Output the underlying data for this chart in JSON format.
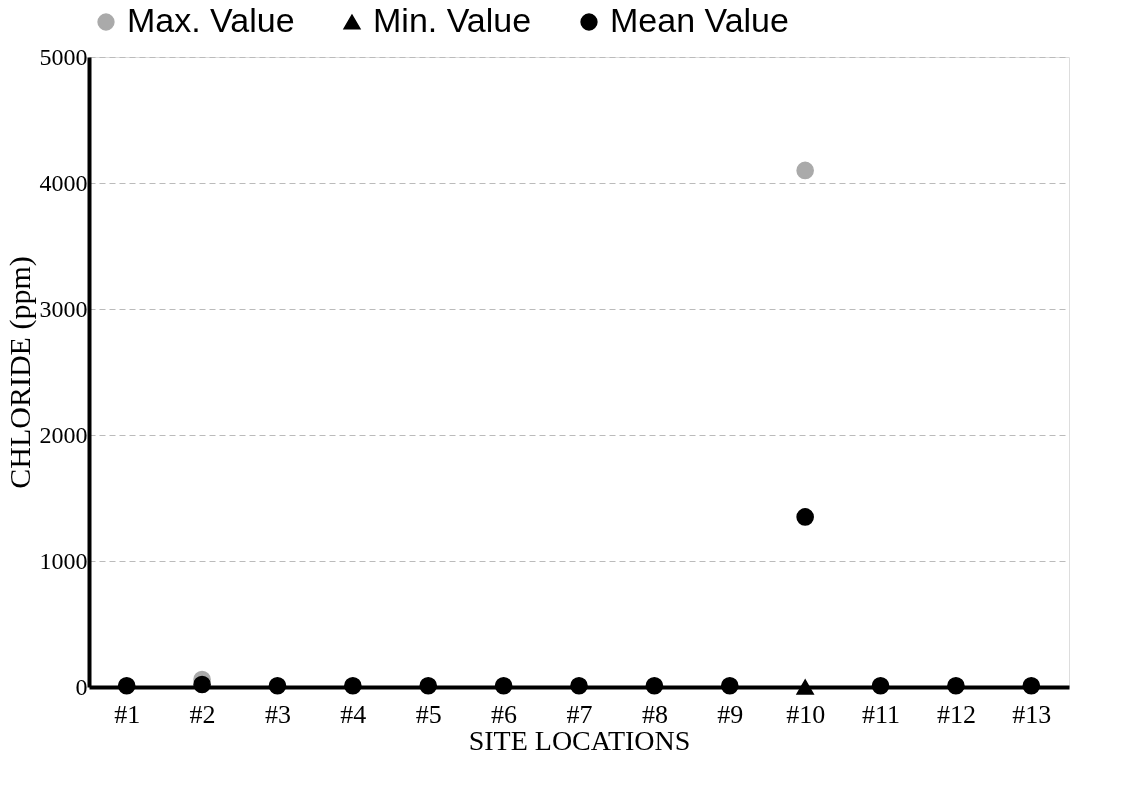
{
  "chart_data": {
    "type": "scatter",
    "xlabel": "SITE LOCATIONS",
    "ylabel": "CHLORIDE (ppm)",
    "categories": [
      "#1",
      "#2",
      "#3",
      "#4",
      "#5",
      "#6",
      "#7",
      "#8",
      "#9",
      "#10",
      "#11",
      "#12",
      "#13"
    ],
    "ylim": [
      0,
      5000
    ],
    "yticks": [
      0,
      1000,
      2000,
      3000,
      4000,
      5000
    ],
    "grid": "y",
    "legend": "top",
    "series": [
      {
        "name": "Max. Value",
        "color": "#aaaaaa",
        "marker": "circle",
        "values": [
          null,
          60,
          null,
          null,
          null,
          null,
          null,
          null,
          null,
          4100,
          null,
          null,
          null
        ]
      },
      {
        "name": "Min. Value",
        "color": "#000000",
        "marker": "triangle",
        "values": [
          null,
          null,
          null,
          null,
          null,
          null,
          null,
          null,
          null,
          0,
          null,
          null,
          null
        ]
      },
      {
        "name": "Mean Value",
        "color": "#000000",
        "marker": "circle",
        "values": [
          10,
          20,
          10,
          10,
          10,
          10,
          10,
          10,
          10,
          1350,
          10,
          10,
          10
        ]
      }
    ]
  }
}
